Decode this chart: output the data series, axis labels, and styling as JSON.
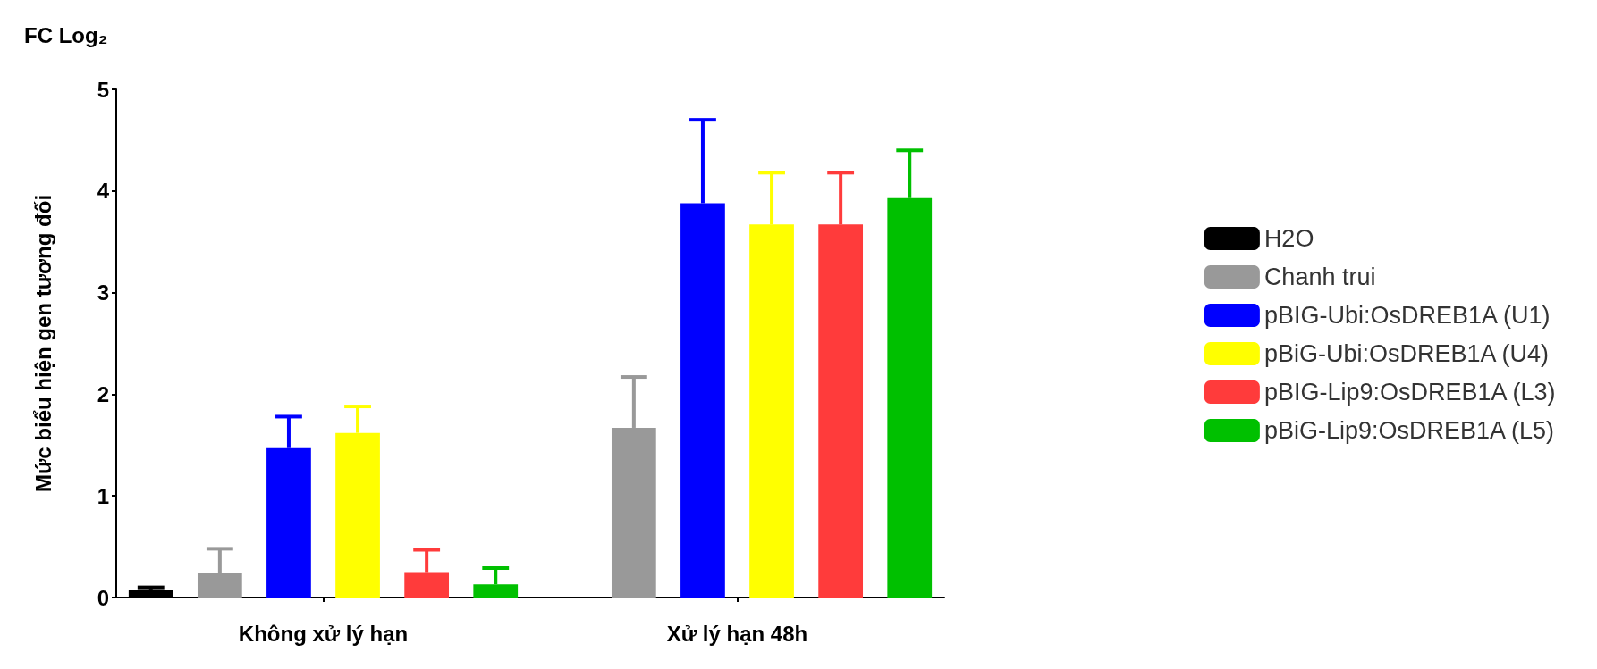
{
  "chart_data": {
    "type": "bar",
    "title": "FC Log₂",
    "ylabel": "Mức biểu hiện gen tương đối",
    "categories": [
      "Không xử lý hạn",
      "Xử lý hạn 48h"
    ],
    "series": [
      {
        "name": "H2O",
        "color": "#000000",
        "values": [
          0.08,
          null
        ],
        "errors": [
          [
            0.08,
            0.1
          ],
          null
        ]
      },
      {
        "name": "Chanh trui",
        "color": "#999999",
        "values": [
          0.24,
          1.67
        ],
        "errors": [
          [
            0.24,
            0.48
          ],
          [
            1.67,
            2.17
          ]
        ]
      },
      {
        "name": "pBIG-Ubi:OsDREB1A (U1)",
        "color": "#0000ff",
        "values": [
          1.47,
          3.88
        ],
        "errors": [
          [
            1.47,
            1.78
          ],
          [
            3.88,
            4.7
          ]
        ]
      },
      {
        "name": "pBiG-Ubi:OsDREB1A (U4)",
        "color": "#ffff00",
        "values": [
          1.62,
          3.67
        ],
        "errors": [
          [
            1.62,
            1.88
          ],
          [
            3.67,
            4.18
          ]
        ]
      },
      {
        "name": "pBIG-Lip9:OsDREB1A (L3)",
        "color": "#ff3b3b",
        "values": [
          0.25,
          3.67
        ],
        "errors": [
          [
            0.25,
            0.47
          ],
          [
            3.67,
            4.18
          ]
        ]
      },
      {
        "name": "pBiG-Lip9:OsDREB1A (L5)",
        "color": "#00c000",
        "values": [
          0.13,
          3.93
        ],
        "errors": [
          [
            0.13,
            0.29
          ],
          [
            3.93,
            4.4
          ]
        ]
      }
    ],
    "ylim": [
      0,
      5
    ],
    "yticks": [
      0,
      1,
      2,
      3,
      4,
      5
    ],
    "grid": false,
    "legend": "right"
  }
}
